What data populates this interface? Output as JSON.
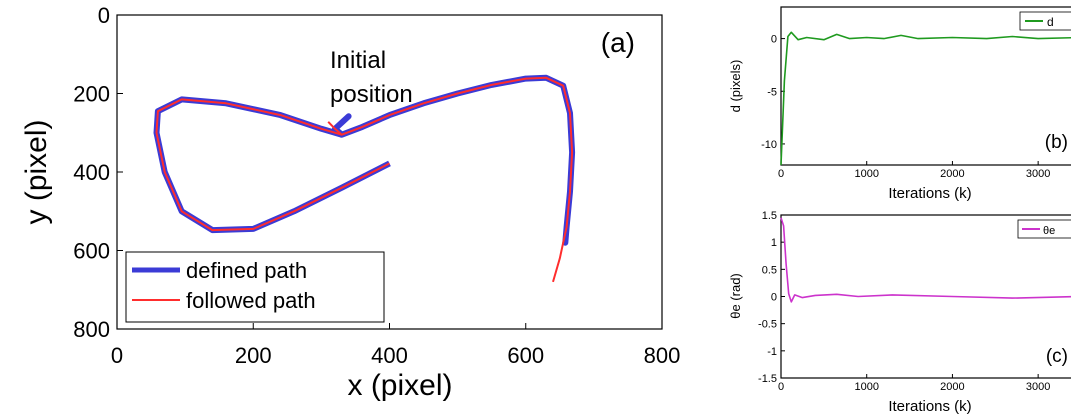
{
  "chart_data": [
    {
      "panel": "(a)",
      "type": "line",
      "xlabel": "x (pixel)",
      "ylabel": "y (pixel)",
      "xlim": [
        0,
        800
      ],
      "ylim": [
        0,
        800
      ],
      "y_inverted": true,
      "xticks": [
        "0",
        "200",
        "400",
        "600",
        "800"
      ],
      "yticks": [
        "0",
        "200",
        "400",
        "600",
        "800"
      ],
      "annotation_line1": "Initial",
      "annotation_line2": "position",
      "legend": [
        "defined path",
        "followed path"
      ],
      "legend_position": "bottom-left",
      "colors": {
        "defined": "#3b3bd6",
        "followed": "#ff2d2d"
      },
      "series": [
        {
          "name": "defined path",
          "x": [
            340,
            320,
            330,
            360,
            400,
            450,
            500,
            550,
            600,
            630,
            655,
            665,
            668,
            665,
            660,
            658
          ],
          "y": [
            258,
            290,
            305,
            285,
            255,
            225,
            200,
            178,
            162,
            160,
            180,
            250,
            350,
            450,
            540,
            580
          ]
        },
        {
          "name": "followed path",
          "x": [
            310,
            320,
            330,
            360,
            400,
            450,
            500,
            550,
            600,
            630,
            655,
            665,
            668,
            665,
            660,
            650,
            640
          ],
          "y": [
            272,
            290,
            305,
            285,
            255,
            225,
            200,
            178,
            162,
            160,
            180,
            250,
            350,
            450,
            540,
            620,
            680
          ]
        }
      ],
      "loop": {
        "x": [
          330,
          300,
          240,
          160,
          95,
          60,
          58,
          70,
          95,
          140,
          200,
          260,
          330,
          400
        ],
        "y": [
          305,
          290,
          255,
          225,
          215,
          245,
          300,
          400,
          500,
          548,
          545,
          500,
          440,
          378
        ]
      }
    },
    {
      "panel": "(b)",
      "type": "line",
      "xlabel": "Iterations (k)",
      "ylabel": "d (pixels)",
      "xlim": [
        0,
        3500
      ],
      "ylim": [
        -12,
        3
      ],
      "xticks": [
        "0",
        "1000",
        "2000",
        "3000"
      ],
      "yticks": [
        "0",
        "-5",
        "-10"
      ],
      "legend": [
        "d"
      ],
      "legend_position": "top-right",
      "color": "#1f9a1f",
      "x": [
        0,
        40,
        80,
        120,
        200,
        300,
        500,
        650,
        800,
        1000,
        1200,
        1400,
        1600,
        2000,
        2400,
        2700,
        3000,
        3500
      ],
      "y": [
        -12,
        -4,
        0.2,
        0.6,
        -0.1,
        0.1,
        -0.1,
        0.4,
        0,
        0.1,
        0,
        0.3,
        0,
        0.1,
        0,
        0.2,
        0,
        0.1
      ]
    },
    {
      "panel": "(c)",
      "type": "line",
      "xlabel": "Iterations (k)",
      "ylabel": "θe (rad)",
      "xlim": [
        0,
        3500
      ],
      "ylim": [
        -1.5,
        1.5
      ],
      "xticks": [
        "0",
        "1000",
        "2000",
        "3000"
      ],
      "yticks": [
        "1.5",
        "1",
        "0.5",
        "0",
        "-0.5",
        "-1",
        "-1.5"
      ],
      "legend": [
        "θe"
      ],
      "legend_position": "top-right",
      "color": "#cc33cc",
      "x": [
        0,
        30,
        60,
        90,
        120,
        160,
        250,
        400,
        650,
        900,
        1300,
        2000,
        2700,
        3500
      ],
      "y": [
        1.45,
        1.3,
        0.6,
        0.05,
        -0.1,
        0.03,
        -0.02,
        0.02,
        0.04,
        0,
        0.03,
        0,
        -0.03,
        0
      ]
    }
  ]
}
